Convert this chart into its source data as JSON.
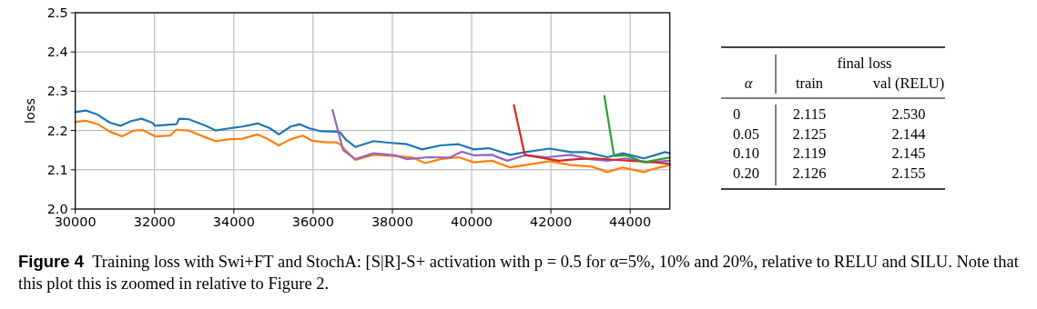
{
  "chart_data": [
    {
      "type": "line",
      "ylabel": "loss",
      "xlim": [
        30000,
        45000
      ],
      "xticks": [
        30000,
        32000,
        34000,
        36000,
        38000,
        40000,
        42000,
        44000
      ],
      "ylim": [
        2.0,
        2.5
      ],
      "yticks": [
        {
          "value": 2,
          "label": "2.0"
        },
        2.1,
        2.2,
        2.3,
        2.4,
        2.5
      ],
      "grid": true,
      "annotations": [
        "Figure 4",
        "Training loss with Swi+FT and StochA: [S|R]-S+ activation with p = 0.5 for α=5%, 10% and 20%, relative to RELU and SILU. Note that this plot this is zoomed in relative to Figure 2."
      ],
      "series": [
        {
          "color": "#1f77b4",
          "x": [
            30000,
            30266,
            30570,
            30875,
            31140,
            31407,
            31673,
            31939,
            32015,
            32548,
            32620,
            32850,
            33300,
            33536,
            33916,
            34220,
            34600,
            34905,
            35133,
            35437,
            35665,
            35894,
            36198,
            36578,
            36682,
            36834,
            37065,
            37525,
            37908,
            38368,
            38751,
            39211,
            39670,
            40054,
            40437,
            40973,
            41356,
            41969,
            42506,
            42889,
            43425,
            43808,
            44345,
            44651,
            44881,
            45000
          ],
          "values": [
            2.247,
            2.251,
            2.24,
            2.22,
            2.212,
            2.224,
            2.23,
            2.22,
            2.212,
            2.216,
            2.23,
            2.229,
            2.212,
            2.2,
            2.206,
            2.21,
            2.218,
            2.206,
            2.19,
            2.21,
            2.216,
            2.206,
            2.198,
            2.197,
            2.195,
            2.176,
            2.158,
            2.173,
            2.169,
            2.165,
            2.152,
            2.162,
            2.165,
            2.152,
            2.155,
            2.138,
            2.145,
            2.154,
            2.145,
            2.145,
            2.132,
            2.142,
            2.129,
            2.138,
            2.145,
            2.142
          ]
        },
        {
          "color": "#ff7f0e",
          "x": [
            30000,
            30266,
            30570,
            30875,
            31180,
            31483,
            31711,
            32015,
            32395,
            32548,
            32850,
            33300,
            33536,
            33916,
            34220,
            34600,
            34829,
            35133,
            35437,
            35741,
            35970,
            36350,
            36578,
            36682,
            36835,
            37065,
            37525,
            38061,
            38521,
            38828,
            39211,
            39670,
            40054,
            40514,
            40973,
            41356,
            41969,
            42506,
            43042,
            43425,
            43808,
            44345,
            44651,
            45000
          ],
          "values": [
            2.222,
            2.225,
            2.216,
            2.197,
            2.185,
            2.2,
            2.201,
            2.185,
            2.187,
            2.202,
            2.2,
            2.182,
            2.173,
            2.178,
            2.179,
            2.19,
            2.18,
            2.162,
            2.178,
            2.187,
            2.174,
            2.17,
            2.17,
            2.165,
            2.148,
            2.125,
            2.138,
            2.135,
            2.131,
            2.117,
            2.127,
            2.132,
            2.119,
            2.123,
            2.106,
            2.112,
            2.122,
            2.112,
            2.108,
            2.094,
            2.106,
            2.094,
            2.104,
            2.112
          ]
        },
        {
          "color": "#9467bd",
          "x": [
            36490,
            36759,
            37065,
            37525,
            38061,
            38368,
            38904,
            39441,
            39747,
            40054,
            40514,
            40897,
            41356,
            41893,
            42506,
            42966,
            43425,
            43885,
            44421,
            45000
          ],
          "values": [
            2.252,
            2.15,
            2.127,
            2.142,
            2.137,
            2.127,
            2.132,
            2.131,
            2.146,
            2.137,
            2.138,
            2.123,
            2.137,
            2.132,
            2.138,
            2.127,
            2.123,
            2.129,
            2.119,
            2.123
          ]
        },
        {
          "color": "#d62728",
          "x": [
            41065,
            41341,
            41739,
            42199,
            42659,
            43119,
            43655,
            44192,
            44651,
            45000
          ],
          "values": [
            2.265,
            2.138,
            2.131,
            2.123,
            2.127,
            2.129,
            2.125,
            2.122,
            2.119,
            2.115
          ]
        },
        {
          "color": "#2ca02c",
          "x": [
            43349,
            43594,
            43885,
            44345,
            44651,
            45000
          ],
          "values": [
            2.288,
            2.135,
            2.137,
            2.119,
            2.125,
            2.131
          ]
        }
      ]
    },
    {
      "type": "other",
      "title": "final loss",
      "xlabel": "α",
      "categories": [
        "0",
        "0.05",
        "0.10",
        "0.20"
      ],
      "series": [
        {
          "name": "train",
          "values": [
            2.115,
            2.125,
            2.119,
            2.126
          ],
          "value_labels": [
            "2.115",
            "2.125",
            "2.119",
            "2.126"
          ]
        },
        {
          "name": "val (RELU)",
          "values": [
            2.53,
            2.144,
            2.145,
            2.155
          ],
          "value_labels": [
            "2.530",
            "2.144",
            "2.145",
            "2.155"
          ]
        }
      ]
    }
  ]
}
